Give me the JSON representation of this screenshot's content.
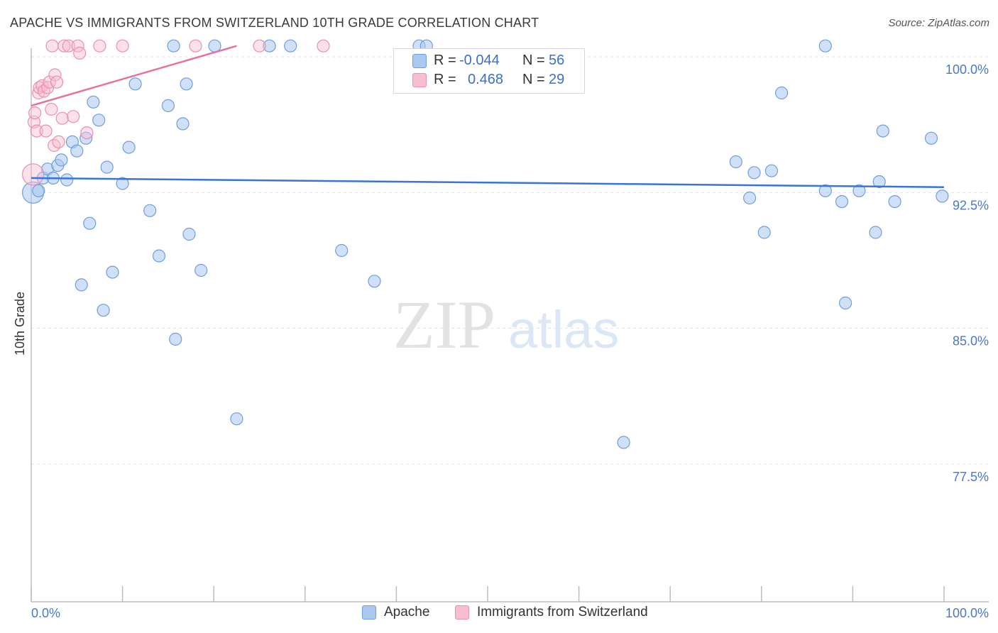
{
  "header": {
    "title": "APACHE VS IMMIGRANTS FROM SWITZERLAND 10TH GRADE CORRELATION CHART",
    "source": "Source: ZipAtlas.com"
  },
  "watermark": {
    "zip": "ZIP",
    "atlas": "atlas"
  },
  "legend": {
    "r_label": "R =",
    "n_label": "N =",
    "rows": [
      {
        "r": "-0.044",
        "n": "56"
      },
      {
        "r": "0.468",
        "n": "29"
      }
    ]
  },
  "colors": {
    "blue_fill": "#aac8f0",
    "blue_stroke": "#6f9ee0",
    "blue_line": "#3a74d4",
    "pink_fill": "#f7bdd0",
    "pink_stroke": "#ec8fae",
    "pink_line": "#e8709a",
    "tick_text": "#4a78c8",
    "grid": "#e3e3e3"
  },
  "chart_data": {
    "type": "scatter",
    "title": "APACHE VS IMMIGRANTS FROM SWITZERLAND 10TH GRADE CORRELATION CHART",
    "xlabel": "",
    "ylabel": "10th Grade",
    "xlim": [
      0,
      100
    ],
    "ylim": [
      70.0,
      101.5
    ],
    "x_tick_labels": [
      "0.0%",
      "100.0%"
    ],
    "y_ticks": [
      100.0,
      92.5,
      85.0,
      77.5
    ],
    "y_tick_labels": [
      "100.0%",
      "92.5%",
      "85.0%",
      "77.5%"
    ],
    "grid": true,
    "legend_position": "top-center",
    "series": [
      {
        "name": "Apache",
        "r": -0.044,
        "n": 56,
        "trend": {
          "x": [
            0,
            100
          ],
          "y": [
            93.3,
            92.8
          ]
        },
        "points": [
          [
            0.2,
            92.5
          ],
          [
            0.8,
            92.6
          ],
          [
            1.3,
            93.3
          ],
          [
            1.8,
            93.8
          ],
          [
            2.4,
            93.3
          ],
          [
            2.9,
            94.0
          ],
          [
            3.3,
            94.3
          ],
          [
            3.9,
            93.2
          ],
          [
            4.5,
            95.3
          ],
          [
            5.0,
            94.8
          ],
          [
            5.5,
            87.4
          ],
          [
            6.0,
            95.5
          ],
          [
            6.4,
            90.8
          ],
          [
            6.8,
            97.5
          ],
          [
            7.4,
            96.5
          ],
          [
            7.9,
            86.0
          ],
          [
            8.3,
            93.9
          ],
          [
            8.9,
            88.1
          ],
          [
            10.0,
            93.0
          ],
          [
            10.7,
            95.0
          ],
          [
            11.4,
            98.5
          ],
          [
            13.0,
            91.5
          ],
          [
            14.0,
            89.0
          ],
          [
            15.0,
            97.3
          ],
          [
            15.6,
            100.6
          ],
          [
            15.8,
            84.4
          ],
          [
            16.6,
            96.3
          ],
          [
            17.0,
            98.5
          ],
          [
            17.3,
            90.2
          ],
          [
            18.6,
            88.2
          ],
          [
            20.1,
            100.6
          ],
          [
            22.5,
            80.0
          ],
          [
            26.1,
            100.6
          ],
          [
            28.4,
            100.6
          ],
          [
            34.0,
            89.3
          ],
          [
            37.6,
            87.6
          ],
          [
            42.5,
            100.6
          ],
          [
            64.9,
            78.7
          ],
          [
            77.2,
            94.2
          ],
          [
            78.7,
            92.2
          ],
          [
            79.2,
            93.6
          ],
          [
            80.3,
            90.3
          ],
          [
            81.1,
            93.7
          ],
          [
            82.2,
            98.0
          ],
          [
            87.0,
            92.6
          ],
          [
            87.0,
            100.6
          ],
          [
            88.8,
            92.0
          ],
          [
            89.2,
            86.4
          ],
          [
            90.7,
            92.6
          ],
          [
            92.5,
            90.3
          ],
          [
            92.9,
            93.1
          ],
          [
            93.3,
            95.9
          ],
          [
            94.6,
            92.0
          ],
          [
            98.6,
            95.5
          ],
          [
            99.8,
            92.3
          ],
          [
            43.3,
            100.6
          ]
        ]
      },
      {
        "name": "Immigrants from Switzerland",
        "r": 0.468,
        "n": 29,
        "trend": {
          "x": [
            0,
            22.5
          ],
          "y": [
            97.3,
            100.6
          ]
        },
        "points": [
          [
            0.2,
            93.5
          ],
          [
            0.3,
            96.4
          ],
          [
            0.4,
            96.9
          ],
          [
            0.6,
            95.9
          ],
          [
            0.8,
            98.0
          ],
          [
            0.9,
            98.3
          ],
          [
            1.2,
            98.4
          ],
          [
            1.4,
            98.1
          ],
          [
            1.6,
            95.9
          ],
          [
            1.8,
            98.3
          ],
          [
            2.0,
            98.6
          ],
          [
            2.2,
            97.1
          ],
          [
            2.3,
            100.6
          ],
          [
            2.5,
            95.1
          ],
          [
            2.6,
            99.0
          ],
          [
            2.8,
            98.6
          ],
          [
            3.0,
            95.3
          ],
          [
            3.4,
            96.6
          ],
          [
            3.6,
            100.6
          ],
          [
            4.1,
            100.6
          ],
          [
            4.6,
            96.7
          ],
          [
            5.1,
            100.6
          ],
          [
            5.3,
            100.2
          ],
          [
            6.1,
            95.8
          ],
          [
            7.5,
            100.6
          ],
          [
            10.0,
            100.6
          ],
          [
            18.0,
            100.6
          ],
          [
            25.0,
            100.6
          ],
          [
            32.0,
            100.6
          ]
        ]
      }
    ]
  }
}
